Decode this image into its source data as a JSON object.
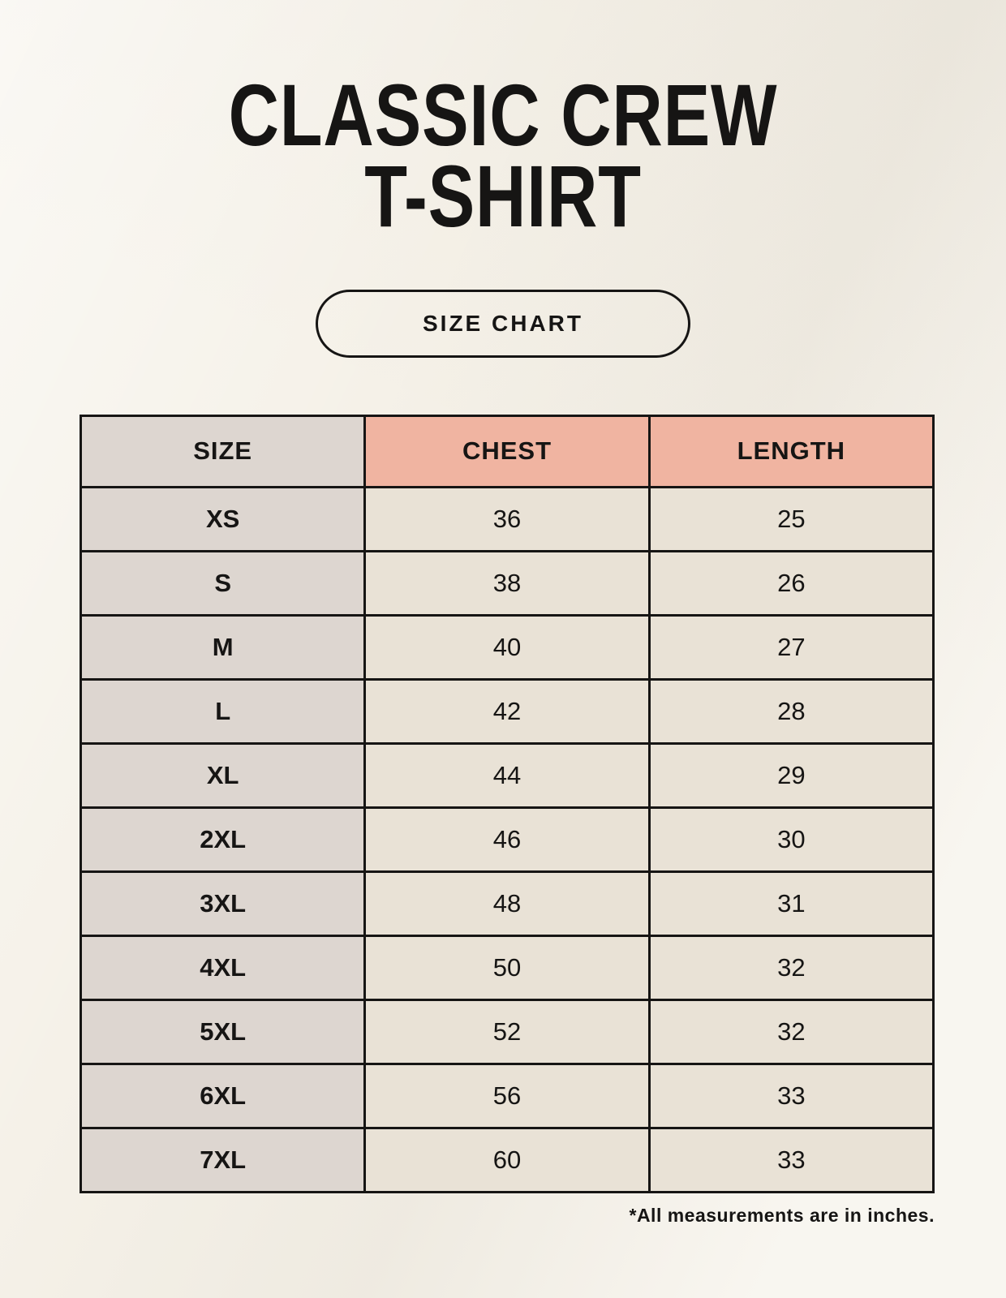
{
  "header": {
    "title_line1": "CLASSIC CREW",
    "title_line2": "T-SHIRT",
    "badge_label": "SIZE CHART"
  },
  "table": {
    "columns": [
      "SIZE",
      "CHEST",
      "LENGTH"
    ],
    "rows": [
      [
        "XS",
        "36",
        "25"
      ],
      [
        "S",
        "38",
        "26"
      ],
      [
        "M",
        "40",
        "27"
      ],
      [
        "L",
        "42",
        "28"
      ],
      [
        "XL",
        "44",
        "29"
      ],
      [
        "2XL",
        "46",
        "30"
      ],
      [
        "3XL",
        "48",
        "31"
      ],
      [
        "4XL",
        "50",
        "32"
      ],
      [
        "5XL",
        "52",
        "32"
      ],
      [
        "6XL",
        "56",
        "33"
      ],
      [
        "7XL",
        "60",
        "33"
      ]
    ]
  },
  "footnote": "*All measurements are in inches.",
  "colors": {
    "background": "#f5f1e8",
    "header_accent": "#f0b4a1",
    "size_column": "#ddd6d0",
    "cell": "#e9e2d6",
    "border": "#161514",
    "text": "#161514"
  }
}
